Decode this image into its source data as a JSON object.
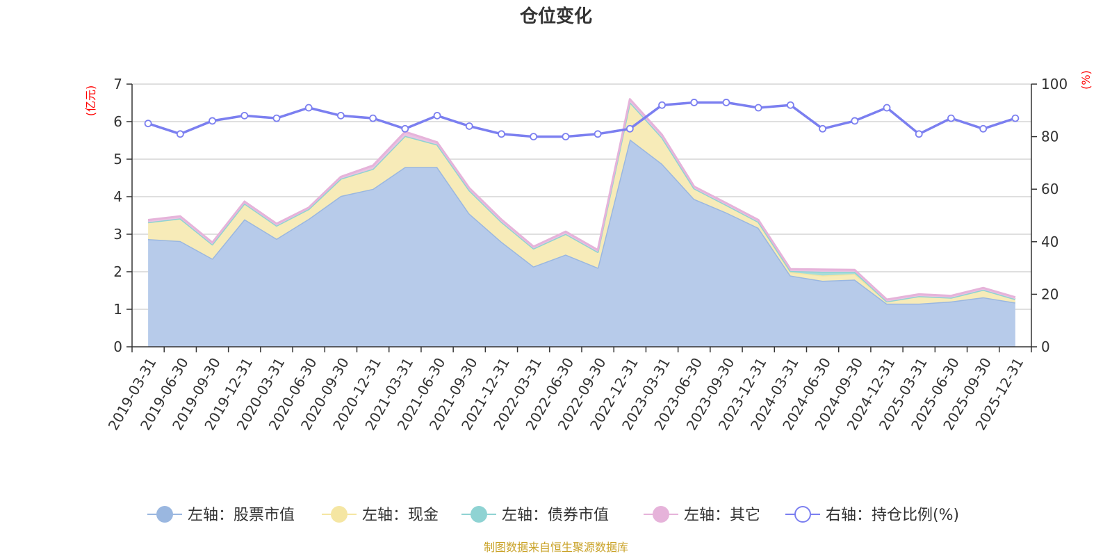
{
  "chart_data": {
    "type": "area",
    "title": "仓位变化",
    "left_axis_unit": "(亿元)",
    "right_axis_unit": "(%)",
    "categories": [
      "2019-03-31",
      "2019-06-30",
      "2019-09-30",
      "2019-12-31",
      "2020-03-31",
      "2020-06-30",
      "2020-09-30",
      "2020-12-31",
      "2021-03-31",
      "2021-06-30",
      "2021-09-30",
      "2021-12-31",
      "2022-03-31",
      "2022-06-30",
      "2022-09-30",
      "2022-12-31",
      "2023-03-31",
      "2023-06-30",
      "2023-09-30",
      "2023-12-31",
      "2024-03-31",
      "2024-06-30",
      "2024-09-30",
      "2024-12-31",
      "2025-03-31",
      "2025-06-30",
      "2025-09-30",
      "2025-12-31"
    ],
    "ylim_left": [
      0,
      7
    ],
    "yticks_left": [
      "0",
      "1",
      "2",
      "3",
      "4",
      "5",
      "6",
      "7"
    ],
    "ylim_right": [
      0,
      100
    ],
    "yticks_right": [
      "0",
      "20",
      "40",
      "60",
      "80",
      "100"
    ],
    "grid": true,
    "legend_position": "bottom",
    "series": [
      {
        "name": "左轴：股票市值",
        "axis": "left",
        "kind": "stacked-area",
        "color": "#9ab7e0",
        "fill": "#b7cbea",
        "values": [
          2.87,
          2.82,
          2.35,
          3.4,
          2.88,
          3.41,
          4.02,
          4.21,
          4.79,
          4.79,
          3.55,
          2.8,
          2.14,
          2.46,
          2.11,
          5.53,
          4.88,
          3.94,
          3.58,
          3.17,
          1.9,
          1.76,
          1.79,
          1.15,
          1.15,
          1.21,
          1.32,
          1.18
        ]
      },
      {
        "name": "左轴：现金",
        "axis": "left",
        "kind": "stacked-area",
        "color": "#f5e6a3",
        "fill": "#f7ebb8",
        "values": [
          0.45,
          0.6,
          0.38,
          0.42,
          0.35,
          0.26,
          0.46,
          0.53,
          0.83,
          0.6,
          0.62,
          0.53,
          0.48,
          0.55,
          0.42,
          0.99,
          0.7,
          0.28,
          0.2,
          0.16,
          0.09,
          0.14,
          0.15,
          0.06,
          0.2,
          0.1,
          0.2,
          0.09
        ]
      },
      {
        "name": "左轴：债券市值",
        "axis": "left",
        "kind": "stacked-area",
        "color": "#8fd3d3",
        "fill": "#a8dcd9",
        "values": [
          0,
          0,
          0,
          0,
          0,
          0,
          0,
          0,
          0,
          0,
          0,
          0,
          0,
          0,
          0,
          0,
          0,
          0,
          0,
          0,
          0.03,
          0.1,
          0.06,
          0,
          0,
          0,
          0,
          0
        ]
      },
      {
        "name": "左轴：其它",
        "axis": "left",
        "kind": "stacked-area",
        "color": "#e6b3da",
        "fill": "#eac3e2",
        "values": [
          0.06,
          0.06,
          0.05,
          0.05,
          0.05,
          0.04,
          0.05,
          0.09,
          0.11,
          0.06,
          0.06,
          0.06,
          0.05,
          0.06,
          0.05,
          0.08,
          0.07,
          0.05,
          0.05,
          0.05,
          0.05,
          0.06,
          0.05,
          0.05,
          0.05,
          0.05,
          0.05,
          0.05
        ]
      },
      {
        "name": "右轴：持仓比例(%)",
        "axis": "right",
        "kind": "line",
        "color": "#7b7ff0",
        "values": [
          85,
          81,
          86,
          88,
          87,
          91,
          88,
          87,
          83,
          88,
          84,
          81,
          80,
          80,
          81,
          83,
          92,
          93,
          93,
          91,
          92,
          83,
          86,
          91,
          81,
          87,
          83,
          87
        ]
      }
    ]
  },
  "footer": {
    "source": "制图数据来自恒生聚源数据库"
  }
}
